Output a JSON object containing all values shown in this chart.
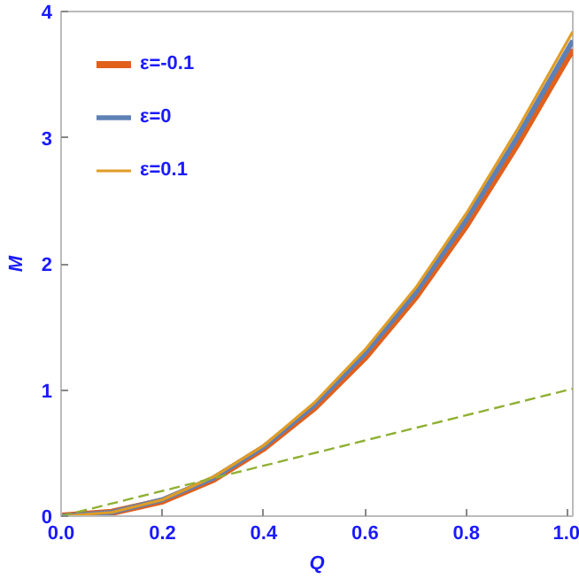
{
  "chart_data": {
    "type": "line",
    "xlabel": "Q",
    "ylabel": "M",
    "x": [
      0,
      0.1,
      0.2,
      0.3,
      0.4,
      0.5,
      0.6,
      0.7,
      0.8,
      0.9,
      1.0,
      1.01
    ],
    "series": [
      {
        "name": "ε=-0.1",
        "color": "#e0601c",
        "values": [
          0,
          0.03,
          0.12,
          0.29,
          0.54,
          0.86,
          1.26,
          1.74,
          2.31,
          2.95,
          3.64,
          3.7
        ]
      },
      {
        "name": "ε=0",
        "color": "#5e81b5",
        "values": [
          0,
          0.03,
          0.13,
          0.3,
          0.55,
          0.88,
          1.29,
          1.77,
          2.35,
          3.0,
          3.7,
          3.77
        ]
      },
      {
        "name": "ε=0.1",
        "color": "#e19c24",
        "values": [
          0,
          0.03,
          0.13,
          0.31,
          0.56,
          0.9,
          1.32,
          1.81,
          2.4,
          3.06,
          3.77,
          3.84
        ]
      },
      {
        "color": "#8fb032",
        "line_style": "dashed",
        "x": [
          0,
          1.01
        ],
        "values": [
          0,
          1.01
        ]
      }
    ],
    "xlim": [
      0,
      1.01
    ],
    "ylim": [
      0,
      4
    ],
    "xticks": [
      {
        "value": 0,
        "label": "0.0"
      },
      0.2,
      0.4,
      0.6,
      0.8,
      {
        "value": 1,
        "label": "1.0"
      }
    ],
    "yticks": [
      0,
      1,
      2,
      3,
      4
    ],
    "grid": false,
    "legend": "top left",
    "line_style": "solid",
    "marker": "none"
  }
}
